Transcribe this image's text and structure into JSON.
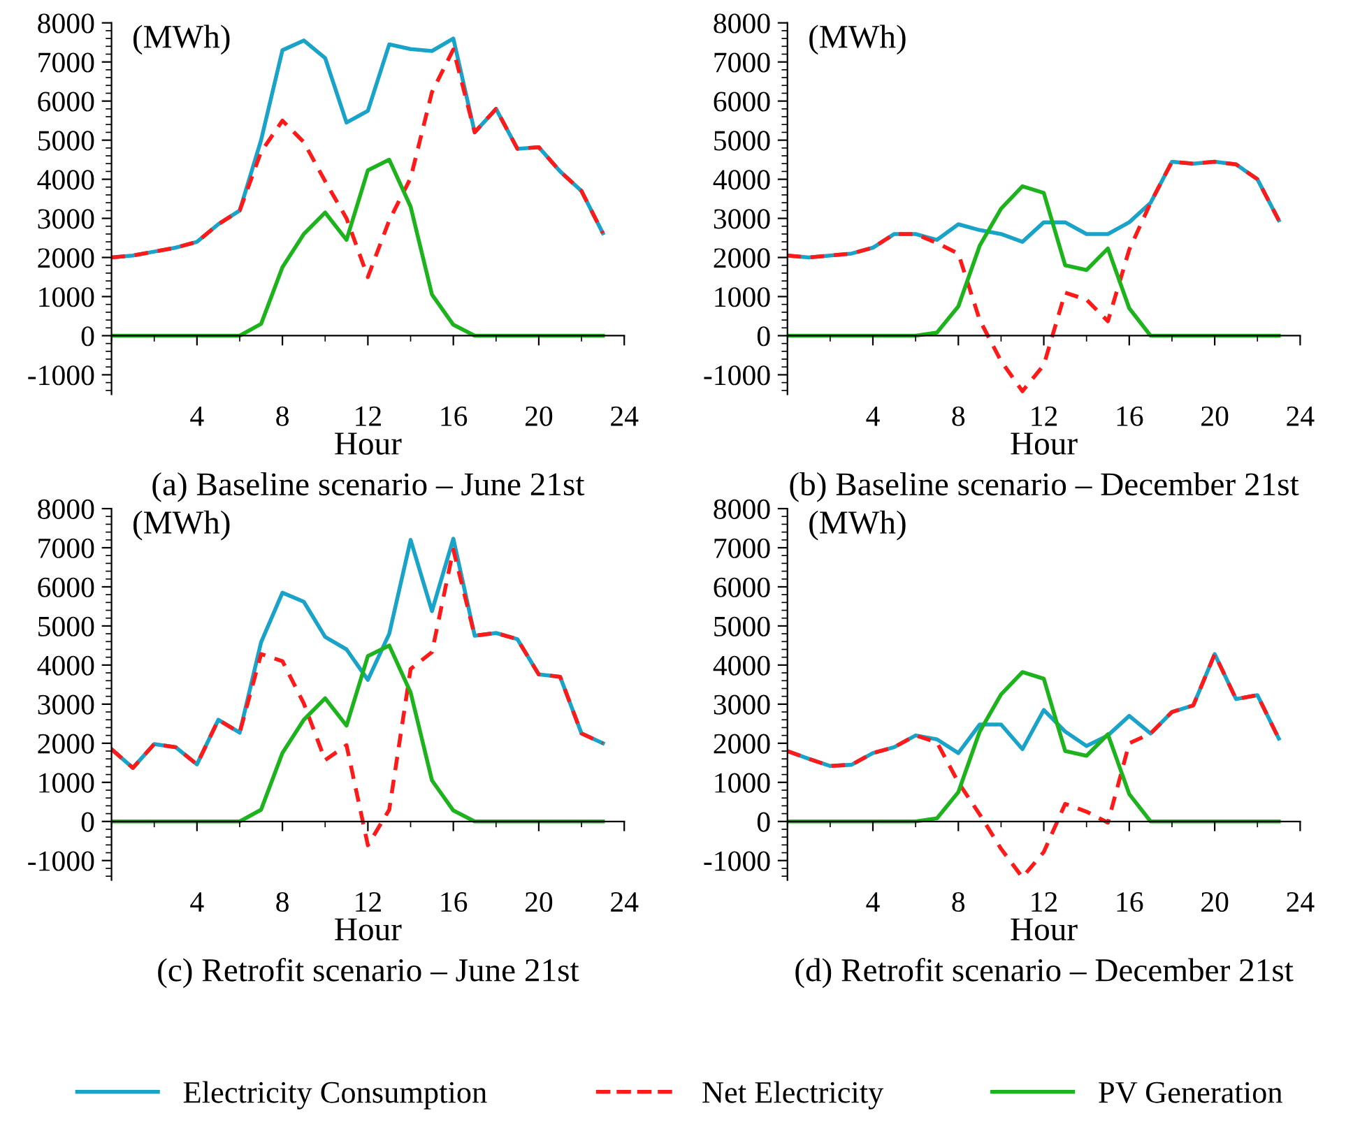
{
  "chart_data": [
    {
      "type": "line",
      "title": "(a) Baseline scenario – June 21st",
      "xlabel": "Hour",
      "ylabel": "(MWh)",
      "xlim": [
        0,
        24
      ],
      "xticks": [
        4,
        8,
        12,
        16,
        20,
        24
      ],
      "ylim": [
        -1500,
        8000
      ],
      "yticks": [
        -1000,
        0,
        1000,
        2000,
        3000,
        4000,
        5000,
        6000,
        7000,
        8000
      ],
      "legend": "bottom",
      "marker": "none",
      "x": [
        0,
        1,
        2,
        3,
        4,
        5,
        6,
        7,
        8,
        9,
        10,
        11,
        12,
        13,
        14,
        15,
        16,
        17,
        18,
        19,
        20,
        21,
        22,
        23
      ],
      "series": [
        {
          "name": "Electricity Consumption",
          "color": "#1aa3c8",
          "line_style": "solid",
          "values": [
            2000,
            2050,
            2150,
            2250,
            2400,
            2850,
            3200,
            5000,
            7300,
            7550,
            7100,
            5450,
            5750,
            7450,
            7330,
            7280,
            7600,
            5200,
            5800,
            4780,
            4820,
            4200,
            3700,
            2620
          ]
        },
        {
          "name": "Net Electricity",
          "color": "#ff1a1a",
          "line_style": "dashed",
          "values": [
            2000,
            2050,
            2150,
            2250,
            2400,
            2850,
            3200,
            4700,
            5500,
            4950,
            3950,
            3000,
            1500,
            2950,
            4030,
            6230,
            7320,
            5200,
            5800,
            4780,
            4820,
            4200,
            3700,
            2620
          ]
        },
        {
          "name": "PV Generation",
          "color": "#1db31d",
          "line_style": "solid",
          "values": [
            0,
            0,
            0,
            0,
            0,
            0,
            0,
            300,
            1750,
            2600,
            3150,
            2450,
            4230,
            4500,
            3300,
            1050,
            280,
            0,
            0,
            0,
            0,
            0,
            0,
            0
          ]
        }
      ]
    },
    {
      "type": "line",
      "title": "(b) Baseline scenario – December 21st",
      "xlabel": "Hour",
      "ylabel": "(MWh)",
      "xlim": [
        0,
        24
      ],
      "xticks": [
        4,
        8,
        12,
        16,
        20,
        24
      ],
      "ylim": [
        -1500,
        8000
      ],
      "yticks": [
        -1000,
        0,
        1000,
        2000,
        3000,
        4000,
        5000,
        6000,
        7000,
        8000
      ],
      "marker": "none",
      "x": [
        0,
        1,
        2,
        3,
        4,
        5,
        6,
        7,
        8,
        9,
        10,
        11,
        12,
        13,
        14,
        15,
        16,
        17,
        18,
        19,
        20,
        21,
        22,
        23
      ],
      "series": [
        {
          "name": "Electricity Consumption",
          "color": "#1aa3c8",
          "line_style": "solid",
          "values": [
            2050,
            2000,
            2050,
            2100,
            2250,
            2600,
            2600,
            2450,
            2850,
            2700,
            2600,
            2400,
            2900,
            2900,
            2600,
            2600,
            2900,
            3400,
            4450,
            4400,
            4450,
            4380,
            4000,
            2950
          ]
        },
        {
          "name": "Net Electricity",
          "color": "#ff1a1a",
          "line_style": "dashed",
          "values": [
            2050,
            2000,
            2050,
            2100,
            2250,
            2600,
            2600,
            2370,
            2100,
            400,
            -650,
            -1420,
            -750,
            1100,
            920,
            370,
            2200,
            3400,
            4450,
            4400,
            4450,
            4380,
            4000,
            2950
          ]
        },
        {
          "name": "PV Generation",
          "color": "#1db31d",
          "line_style": "solid",
          "values": [
            0,
            0,
            0,
            0,
            0,
            0,
            0,
            80,
            750,
            2300,
            3250,
            3820,
            3650,
            1800,
            1680,
            2230,
            700,
            0,
            0,
            0,
            0,
            0,
            0,
            0
          ]
        }
      ]
    },
    {
      "type": "line",
      "title": "(c) Retrofit scenario – June 21st",
      "xlabel": "Hour",
      "ylabel": "(MWh)",
      "xlim": [
        0,
        24
      ],
      "xticks": [
        4,
        8,
        12,
        16,
        20,
        24
      ],
      "ylim": [
        -1500,
        8000
      ],
      "yticks": [
        -1000,
        0,
        1000,
        2000,
        3000,
        4000,
        5000,
        6000,
        7000,
        8000
      ],
      "marker": "none",
      "x": [
        0,
        1,
        2,
        3,
        4,
        5,
        6,
        7,
        8,
        9,
        10,
        11,
        12,
        13,
        14,
        15,
        16,
        17,
        18,
        19,
        20,
        21,
        22,
        23
      ],
      "series": [
        {
          "name": "Electricity Consumption",
          "color": "#1aa3c8",
          "line_style": "solid",
          "values": [
            1850,
            1370,
            1980,
            1900,
            1460,
            2600,
            2270,
            4580,
            5850,
            5620,
            4720,
            4400,
            3620,
            4800,
            7200,
            5380,
            7230,
            4750,
            4820,
            4660,
            3760,
            3700,
            2250,
            2000
          ]
        },
        {
          "name": "Net Electricity",
          "color": "#ff1a1a",
          "line_style": "dashed",
          "values": [
            1850,
            1370,
            1980,
            1900,
            1460,
            2600,
            2270,
            4280,
            4100,
            3020,
            1570,
            1950,
            -610,
            300,
            3900,
            4330,
            6950,
            4750,
            4820,
            4660,
            3760,
            3700,
            2250,
            2000
          ]
        },
        {
          "name": "PV Generation",
          "color": "#1db31d",
          "line_style": "solid",
          "values": [
            0,
            0,
            0,
            0,
            0,
            0,
            0,
            300,
            1750,
            2600,
            3150,
            2450,
            4230,
            4500,
            3300,
            1050,
            280,
            0,
            0,
            0,
            0,
            0,
            0,
            0
          ]
        }
      ]
    },
    {
      "type": "line",
      "title": "(d) Retrofit scenario – December 21st",
      "xlabel": "Hour",
      "ylabel": "(MWh)",
      "xlim": [
        0,
        24
      ],
      "xticks": [
        4,
        8,
        12,
        16,
        20,
        24
      ],
      "ylim": [
        -1500,
        8000
      ],
      "yticks": [
        -1000,
        0,
        1000,
        2000,
        3000,
        4000,
        5000,
        6000,
        7000,
        8000
      ],
      "marker": "none",
      "x": [
        0,
        1,
        2,
        3,
        4,
        5,
        6,
        7,
        8,
        9,
        10,
        11,
        12,
        13,
        14,
        15,
        16,
        17,
        18,
        19,
        20,
        21,
        22,
        23
      ],
      "series": [
        {
          "name": "Electricity Consumption",
          "color": "#1aa3c8",
          "line_style": "solid",
          "values": [
            1800,
            1600,
            1420,
            1450,
            1750,
            1900,
            2200,
            2100,
            1750,
            2480,
            2480,
            1850,
            2850,
            2300,
            1930,
            2200,
            2700,
            2250,
            2800,
            2970,
            4280,
            3130,
            3230,
            2120
          ]
        },
        {
          "name": "Net Electricity",
          "color": "#ff1a1a",
          "line_style": "dashed",
          "values": [
            1800,
            1600,
            1420,
            1450,
            1750,
            1900,
            2200,
            2020,
            1000,
            180,
            -700,
            -1430,
            -780,
            450,
            250,
            -30,
            2000,
            2250,
            2800,
            2970,
            4280,
            3130,
            3230,
            2120
          ]
        },
        {
          "name": "PV Generation",
          "color": "#1db31d",
          "line_style": "solid",
          "values": [
            0,
            0,
            0,
            0,
            0,
            0,
            0,
            80,
            750,
            2300,
            3250,
            3820,
            3650,
            1800,
            1680,
            2230,
            700,
            0,
            0,
            0,
            0,
            0,
            0,
            0
          ]
        }
      ]
    }
  ]
}
